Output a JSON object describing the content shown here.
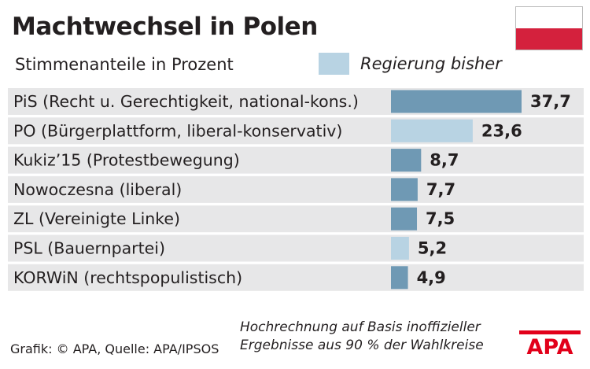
{
  "header": {
    "title": "Machtwechsel in Polen",
    "subtitle": "Stimmenanteile in Prozent"
  },
  "legend": {
    "label": "Regierung bisher",
    "color": "#b8d3e3"
  },
  "flag": {
    "top_color": "#ffffff",
    "bottom_color": "#d4213d"
  },
  "chart_data": {
    "type": "bar",
    "orientation": "horizontal",
    "title": "Machtwechsel in Polen",
    "subtitle": "Stimmenanteile in Prozent",
    "categories": [
      "PiS (Recht u. Gerechtigkeit, national-kons.)",
      "PO (Bürgerplattform, liberal-konservativ)",
      "Kukiz’15 (Protestbewegung)",
      "Nowoczesna (liberal)",
      "ZL (Vereinigte Linke)",
      "PSL (Bauernpartei)",
      "KORWiN (rechtspopulistisch)"
    ],
    "values": [
      37.7,
      23.6,
      8.7,
      7.7,
      7.5,
      5.2,
      4.9
    ],
    "value_labels": [
      "37,7",
      "23,6",
      "8,7",
      "7,7",
      "7,5",
      "5,2",
      "4,9"
    ],
    "previous_government": [
      false,
      true,
      false,
      false,
      false,
      true,
      false
    ],
    "colors": {
      "default": "#6f99b4",
      "previous_government": "#b8d3e3",
      "row_background": "#e7e7e8"
    },
    "xlim": [
      0,
      37.7
    ],
    "grid": false,
    "legend_position": "top-right"
  },
  "footer": {
    "source": "Grafik: © APA, Quelle: APA/IPSOS",
    "note_line1": "Hochrechnung auf Basis inoffizieller",
    "note_line2": "Ergebnisse aus 90 % der Wahlkreise",
    "logo_text": "APA",
    "logo_color": "#e2001a"
  }
}
